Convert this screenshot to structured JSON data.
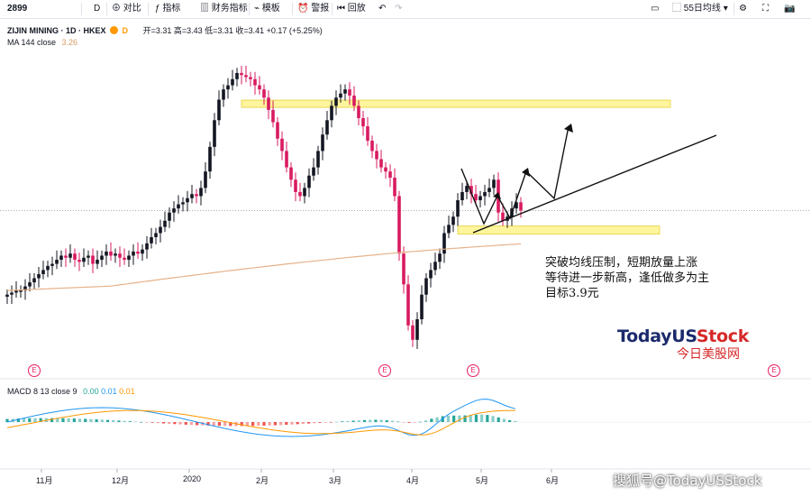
{
  "toolbar": {
    "symbol": "2899",
    "interval": "D",
    "compare": "对比",
    "indicators": "指标",
    "financials": "财务指标",
    "templates": "模板",
    "alert": "警报",
    "replay": "回放",
    "ma_selector": "55日均线"
  },
  "header": {
    "title": "ZIJIN MINING · 1D · HKEX",
    "ohlc": "开=3.31 高=3.43 低=3.31 收=3.41 +0.17 (+5.25%)",
    "ma_label": "MA 144 close",
    "ma_value": "3.26",
    "macd_label": "MACD 8 13 close 9",
    "macd_values": [
      "0.00",
      "0.01",
      "0.01"
    ]
  },
  "annotation": {
    "lines": [
      "突破均线压制，短期放量上涨",
      "等待进一步新高，逢低做多为主",
      "目标3.9元"
    ]
  },
  "brand": {
    "main_dark": "TodayUS",
    "main_red": "Stock",
    "sub": "今日美股网"
  },
  "watermark": "搜狐号@TodayUSStock",
  "x_axis": [
    "11月",
    "12月",
    "2020",
    "2月",
    "3月",
    "4月",
    "5月",
    "6月"
  ],
  "event_badge": "E",
  "colors": {
    "up": "#26a69a",
    "down": "#ef5350",
    "candle_up": "#131722",
    "candle_down": "#d81b60",
    "ma": "#e6b28a",
    "macd_line": "#2196f3",
    "signal_line": "#ff9800",
    "zone": "#fff59d"
  },
  "chart_data": {
    "type": "candlestick",
    "price_series": {
      "name": "ZIJIN MINING",
      "values": [
        3.0,
        3.01,
        3.02,
        3.02,
        3.04,
        3.06,
        3.08,
        3.1,
        3.12,
        3.14,
        3.15,
        3.17,
        3.19,
        3.18,
        3.2,
        3.17,
        3.16,
        3.18,
        3.19,
        3.15,
        3.17,
        3.19,
        3.21,
        3.19,
        3.2,
        3.18,
        3.17,
        3.19,
        3.21,
        3.2,
        3.22,
        3.25,
        3.28,
        3.3,
        3.33,
        3.36,
        3.4,
        3.42,
        3.44,
        3.45,
        3.47,
        3.49,
        3.48,
        3.52,
        3.6,
        3.72,
        3.85,
        3.95,
        4.0,
        4.02,
        4.05,
        4.08,
        4.07,
        4.06,
        4.05,
        4.02,
        4.0,
        3.96,
        3.9,
        3.84,
        3.76,
        3.7,
        3.62,
        3.56,
        3.5,
        3.48,
        3.52,
        3.58,
        3.62,
        3.7,
        3.78,
        3.85,
        3.92,
        3.96,
        3.98,
        4.0,
        3.97,
        3.92,
        3.86,
        3.82,
        3.75,
        3.7,
        3.66,
        3.62,
        3.6,
        3.57,
        3.48,
        3.2,
        3.05,
        2.85,
        2.78,
        2.88,
        3.0,
        3.08,
        3.12,
        3.16,
        3.2,
        3.3,
        3.34,
        3.38,
        3.46,
        3.5,
        3.53,
        3.49,
        3.46,
        3.48,
        3.5,
        3.52,
        3.56,
        3.4,
        3.36,
        3.38,
        3.42,
        3.45,
        3.41
      ]
    },
    "ma_series": {
      "name": "MA 144",
      "last": 3.26
    },
    "macd": {
      "fast": 8,
      "slow": 13,
      "signal": 9,
      "values": [
        0.0,
        0.01,
        0.01
      ]
    },
    "resistance_zone": [
      3.92,
      3.93
    ],
    "support_zone": [
      3.3,
      3.33
    ]
  }
}
